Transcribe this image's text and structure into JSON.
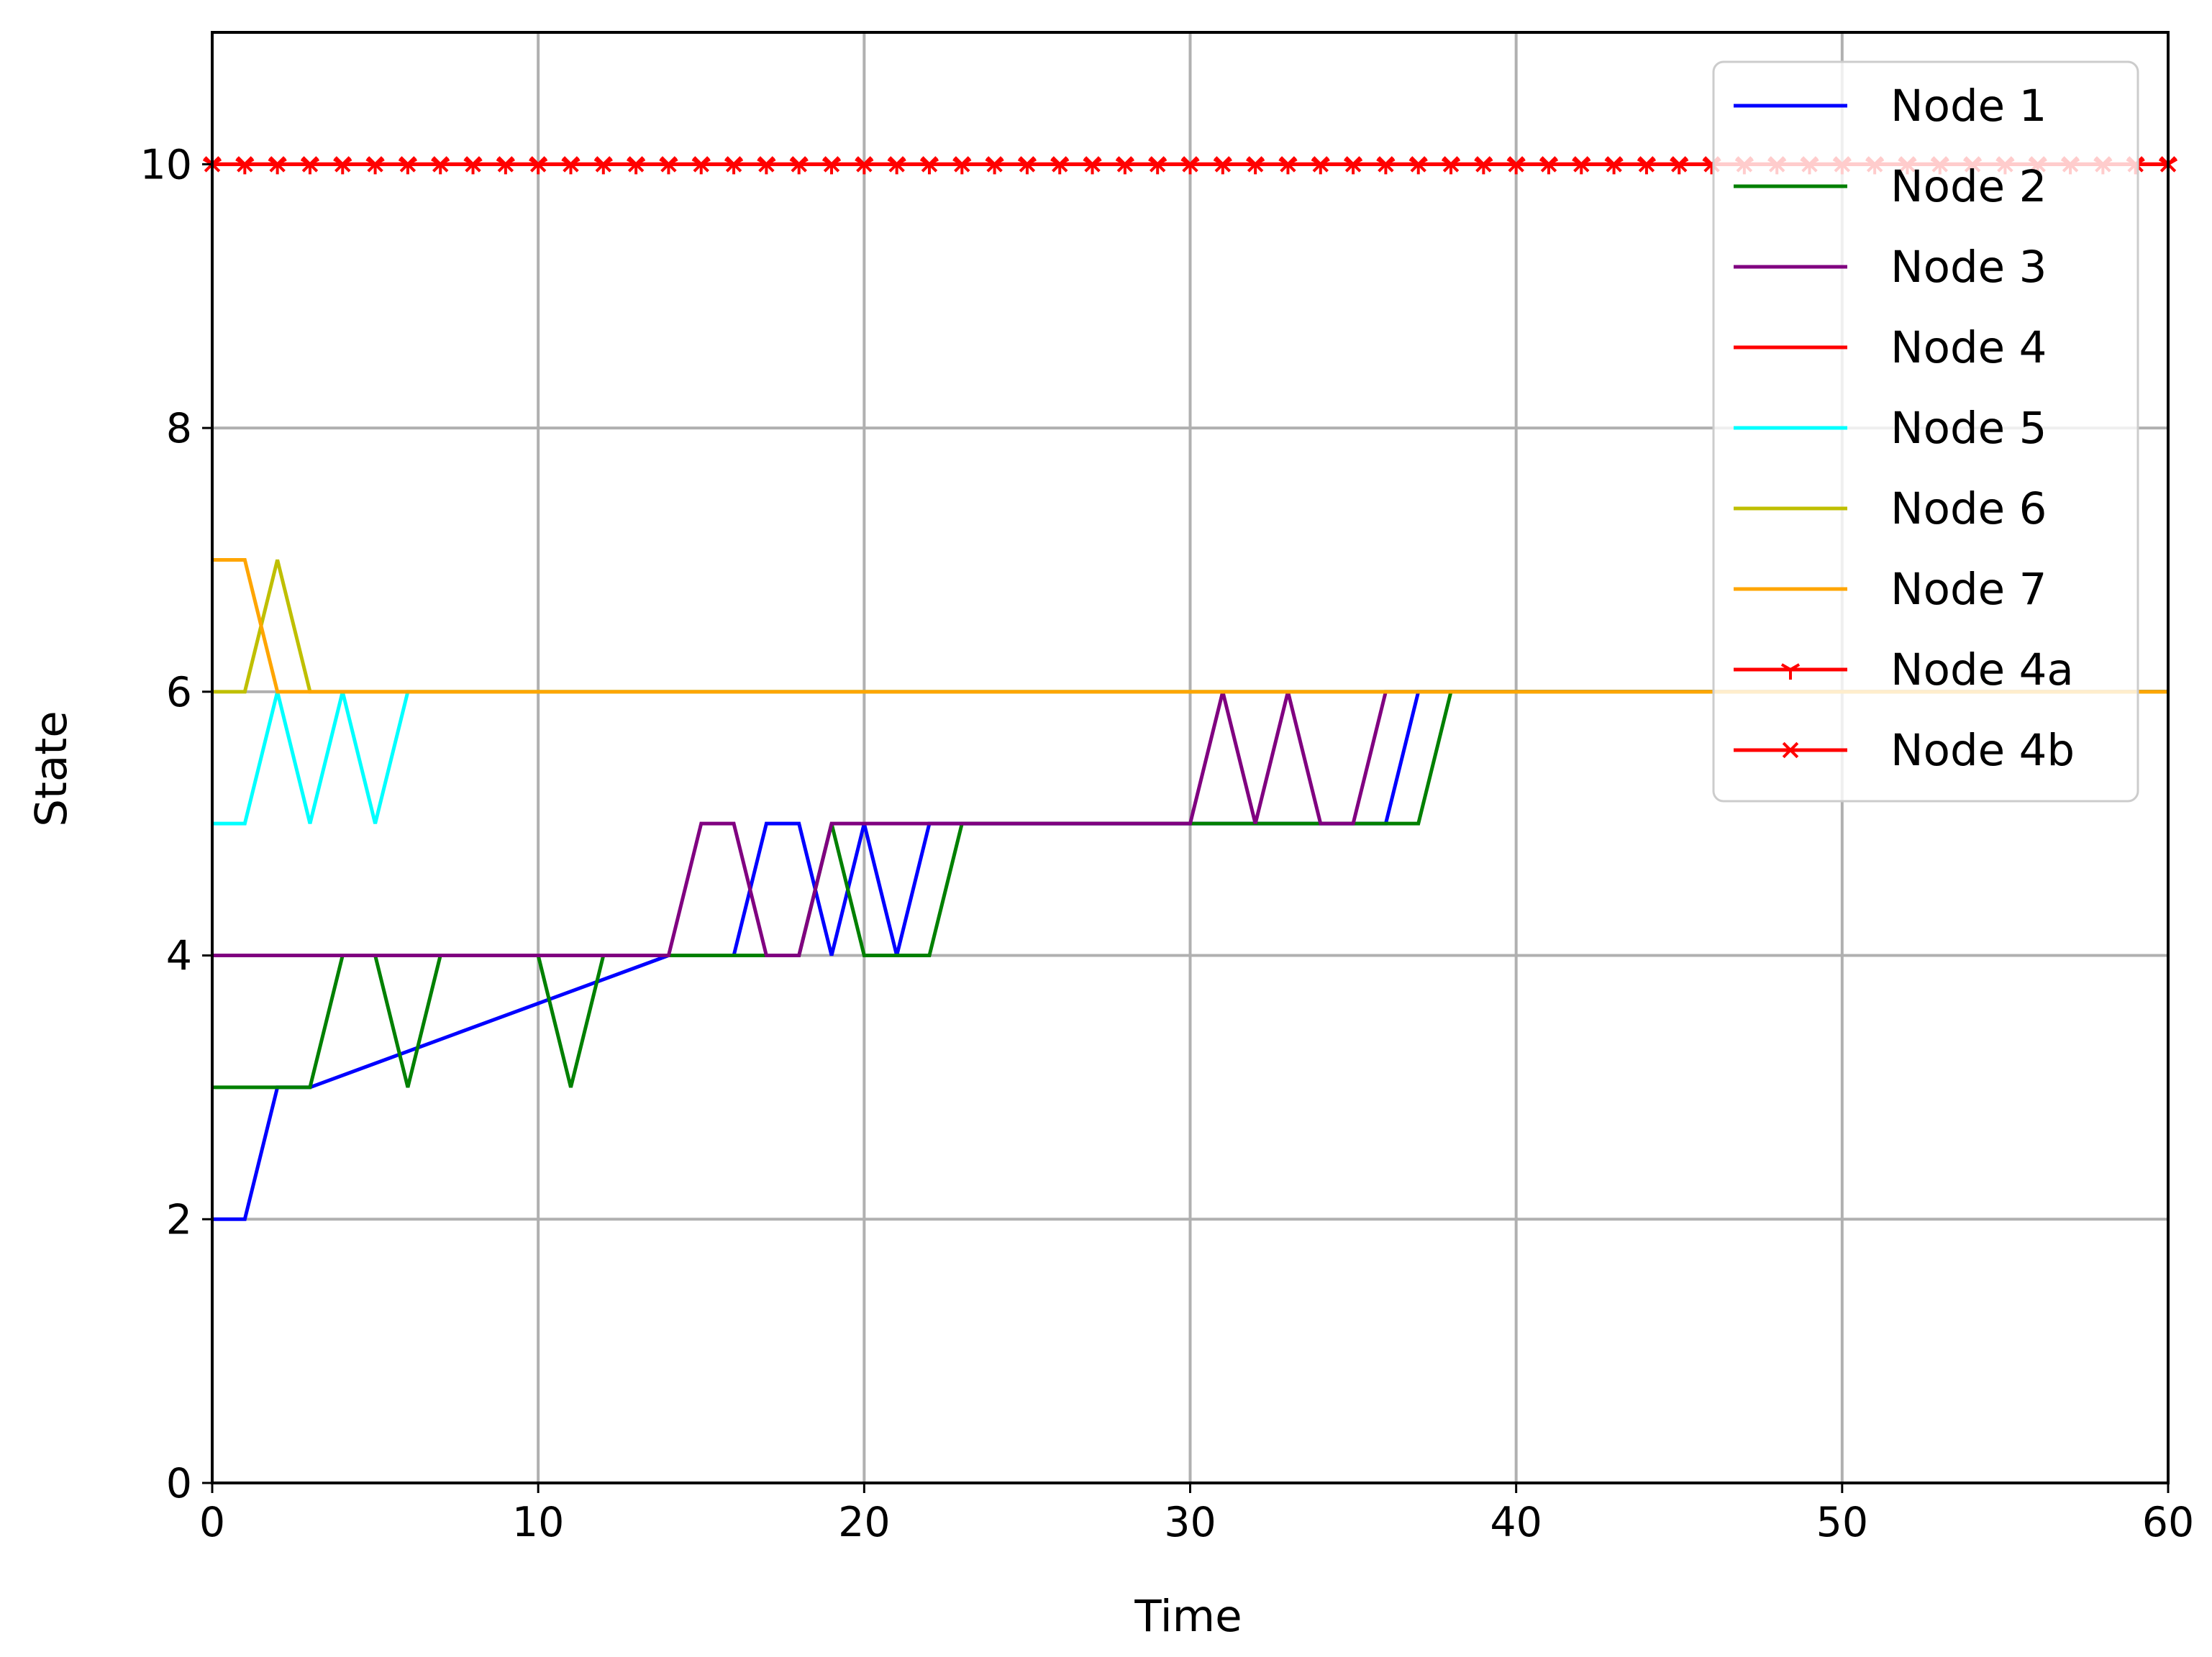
{
  "chart_data": {
    "type": "line",
    "title": "",
    "xlabel": "Time",
    "ylabel": "State",
    "xlim": [
      0,
      60
    ],
    "ylim": [
      0,
      11
    ],
    "xticks": [
      "0",
      "10",
      "20",
      "30",
      "40",
      "50",
      "60"
    ],
    "yticks": [
      "0",
      "2",
      "4",
      "6",
      "8",
      "10"
    ],
    "grid": true,
    "legend_position": "top-right",
    "series": [
      {
        "name": "Node 1",
        "color": "#0000ff",
        "marker": "none",
        "x": [
          0,
          1,
          2,
          3,
          14,
          16,
          17,
          18,
          19,
          20,
          21,
          22,
          30,
          36,
          37,
          60
        ],
        "y": [
          2,
          2,
          3,
          3,
          4,
          4,
          5,
          5,
          4,
          5,
          4,
          5,
          5,
          5,
          6,
          6
        ]
      },
      {
        "name": "Node 2",
        "color": "#008000",
        "marker": "none",
        "x": [
          0,
          3,
          4,
          5,
          6,
          7,
          10,
          11,
          12,
          14,
          17,
          18,
          19,
          20,
          22,
          23,
          30,
          37,
          38,
          60
        ],
        "y": [
          3,
          3,
          4,
          4,
          3,
          4,
          4,
          3,
          4,
          4,
          4,
          4,
          5,
          4,
          4,
          5,
          5,
          5,
          6,
          6
        ]
      },
      {
        "name": "Node 3",
        "color": "#800080",
        "marker": "none",
        "x": [
          0,
          14,
          15,
          16,
          17,
          18,
          19,
          30,
          31,
          32,
          33,
          34,
          35,
          36,
          60
        ],
        "y": [
          4,
          4,
          5,
          5,
          4,
          4,
          5,
          5,
          6,
          5,
          6,
          5,
          5,
          6,
          6
        ]
      },
      {
        "name": "Node 4",
        "color": "#ff0000",
        "marker": "none",
        "x": [
          0,
          60
        ],
        "y": [
          10,
          10
        ]
      },
      {
        "name": "Node 5",
        "color": "#00ffff",
        "marker": "none",
        "x": [
          0,
          1,
          2,
          3,
          4,
          5,
          6,
          60
        ],
        "y": [
          5,
          5,
          6,
          5,
          6,
          5,
          6,
          6
        ]
      },
      {
        "name": "Node 6",
        "color": "#bfbf00",
        "marker": "none",
        "x": [
          0,
          1,
          2,
          3,
          60
        ],
        "y": [
          6,
          6,
          7,
          6,
          6
        ]
      },
      {
        "name": "Node 7",
        "color": "#ffa500",
        "marker": "none",
        "x": [
          0,
          1,
          2,
          60
        ],
        "y": [
          7,
          7,
          6,
          6
        ]
      },
      {
        "name": "Node 4a",
        "color": "#ff0000",
        "marker": "tri_down",
        "x": [
          0,
          60
        ],
        "y": [
          10,
          10
        ]
      },
      {
        "name": "Node 4b",
        "color": "#ff0000",
        "marker": "x",
        "x": [
          0,
          60
        ],
        "y": [
          10,
          10
        ]
      }
    ]
  }
}
